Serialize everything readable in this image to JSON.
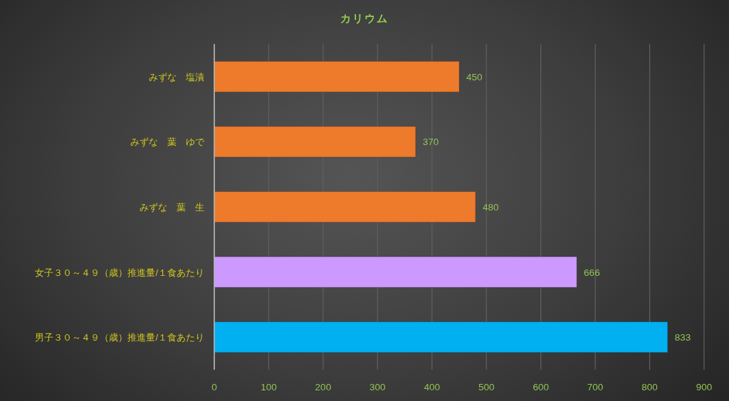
{
  "chart_data": {
    "type": "bar",
    "orientation": "horizontal",
    "title": "カリウム",
    "categories": [
      "みずな　塩漬",
      "みずな　葉　ゆで",
      "みずな　葉　生",
      "女子３０～４９（歳）推進量/１食あたり",
      "男子３０～４９（歳）推進量/１食あたり"
    ],
    "values": [
      450,
      370,
      480,
      666,
      833
    ],
    "colors": [
      "#ee7a2b",
      "#ee7a2b",
      "#ee7a2b",
      "#cc99ff",
      "#00b0f0"
    ],
    "xlim": [
      0,
      900
    ],
    "xticks": [
      0,
      100,
      200,
      300,
      400,
      500,
      600,
      700,
      800,
      900
    ],
    "grid": "x",
    "data_labels": true
  }
}
